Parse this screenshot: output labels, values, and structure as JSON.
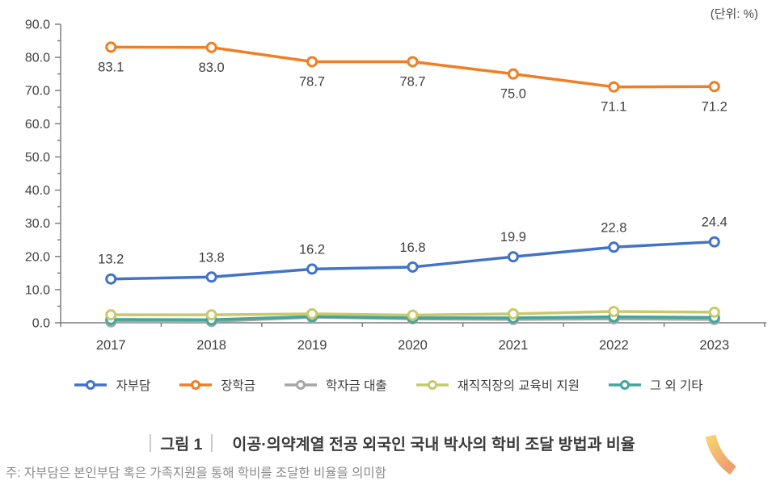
{
  "unit_label": "(단위: %)",
  "chart_data": {
    "type": "line",
    "x": [
      "2017",
      "2018",
      "2019",
      "2020",
      "2021",
      "2022",
      "2023"
    ],
    "series": [
      {
        "name": "자부담",
        "color": "#4273c8",
        "values": [
          13.2,
          13.8,
          16.2,
          16.8,
          19.9,
          22.8,
          24.4
        ],
        "labels_shown": true,
        "label_position": "above",
        "estimated": false
      },
      {
        "name": "장학금",
        "color": "#f07e23",
        "values": [
          83.1,
          83.0,
          78.7,
          78.7,
          75.0,
          71.1,
          71.2
        ],
        "labels_shown": true,
        "label_position": "below",
        "estimated": false
      },
      {
        "name": "학자금 대출",
        "color": "#a6a6a6",
        "values": [
          0.3,
          0.4,
          1.7,
          1.2,
          1.0,
          1.2,
          1.0
        ],
        "labels_shown": false,
        "label_position": "none",
        "estimated": true
      },
      {
        "name": "재직직장의 교육비 지원",
        "color": "#c9c86b",
        "values": [
          2.4,
          2.4,
          2.7,
          2.3,
          2.7,
          3.4,
          3.2
        ],
        "labels_shown": false,
        "label_position": "none",
        "estimated": true
      },
      {
        "name": "그 외 기타",
        "color": "#42a69c",
        "values": [
          1.0,
          0.9,
          1.9,
          1.5,
          1.5,
          1.8,
          1.6
        ],
        "labels_shown": false,
        "label_position": "none",
        "estimated": true
      }
    ],
    "draw_order": [
      2,
      4,
      3,
      0,
      1
    ],
    "title": "",
    "xlabel": "",
    "ylabel": "",
    "ylim": [
      0,
      90
    ],
    "y_tick_interval": 10,
    "y_minor_tick_interval": 5,
    "y_tick_labels": [
      "0.0",
      "10.0",
      "20.0",
      "30.0",
      "40.0",
      "50.0",
      "60.0",
      "70.0",
      "80.0",
      "90.0"
    ],
    "grid": false,
    "legend_position": "bottom"
  },
  "caption": {
    "figure_label": "그림 1",
    "title": "이공·의약계열 전공 외국인 국내 박사의 학비 조달 방법과 비율",
    "note": "주: 자부담은 본인부담 혹은 가족지원을 통해 학비를 조달한 비율을 의미함"
  },
  "colors": {
    "axis": "#7f7f7f",
    "tick_text": "#3f3f3f",
    "data_label_text": "#3f3f3f",
    "note_text": "#8a8a8a",
    "caption_bar": "#c9c9c9",
    "swoosh_gradient_start": "#f7d36e",
    "swoosh_gradient_end": "#eea06f"
  }
}
